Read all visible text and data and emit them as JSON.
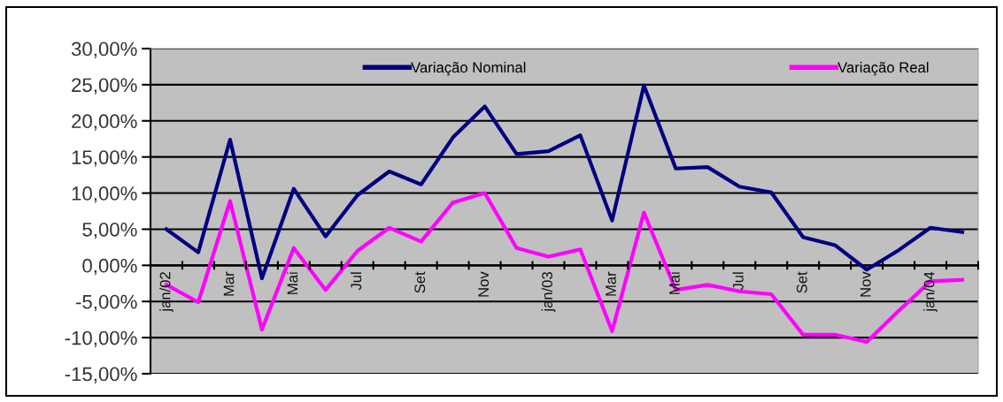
{
  "chart_data": {
    "type": "line",
    "categories": [
      "jan/02",
      null,
      "Mar",
      null,
      "Mai",
      null,
      "Jul",
      null,
      "Set",
      null,
      "Nov",
      null,
      "jan/03",
      null,
      "Mar",
      null,
      "Mai",
      null,
      "Jul",
      null,
      "Set",
      null,
      "Nov",
      null,
      "jan/04",
      null
    ],
    "series": [
      {
        "name": "Variação Nominal",
        "color": "#000080",
        "values": [
          5.0,
          1.8,
          17.4,
          -1.8,
          10.6,
          4.0,
          9.7,
          13.0,
          11.2,
          17.7,
          22.0,
          15.4,
          15.8,
          18.0,
          6.2,
          24.9,
          13.4,
          13.6,
          10.9,
          10.1,
          3.9,
          2.8,
          -0.6,
          2.1,
          5.2,
          4.6
        ]
      },
      {
        "name": "Variação Real",
        "color": "#ff00ff",
        "values": [
          -2.7,
          -5.1,
          8.9,
          -8.9,
          2.4,
          -3.4,
          2.0,
          5.2,
          3.3,
          8.7,
          10.0,
          2.4,
          1.2,
          2.2,
          -9.1,
          7.3,
          -3.4,
          -2.7,
          -3.6,
          -4.0,
          -9.6,
          -9.6,
          -10.6,
          -6.3,
          -2.2,
          -2.0
        ]
      }
    ],
    "ylim": [
      -15,
      30
    ],
    "yticks": [
      {
        "value": -15,
        "label": "-15,00%"
      },
      {
        "value": -10,
        "label": "-10,00%"
      },
      {
        "value": -5,
        "label": "-5,00%"
      },
      {
        "value": 0,
        "label": "0,00%"
      },
      {
        "value": 5,
        "label": "5,00%"
      },
      {
        "value": 10,
        "label": "10,00%"
      },
      {
        "value": 15,
        "label": "15,00%"
      },
      {
        "value": 20,
        "label": "20,00%"
      },
      {
        "value": 25,
        "label": "25,00%"
      },
      {
        "value": 30,
        "label": "30,00%"
      }
    ],
    "grid": "y",
    "legend": "top",
    "line_style": "solid"
  }
}
